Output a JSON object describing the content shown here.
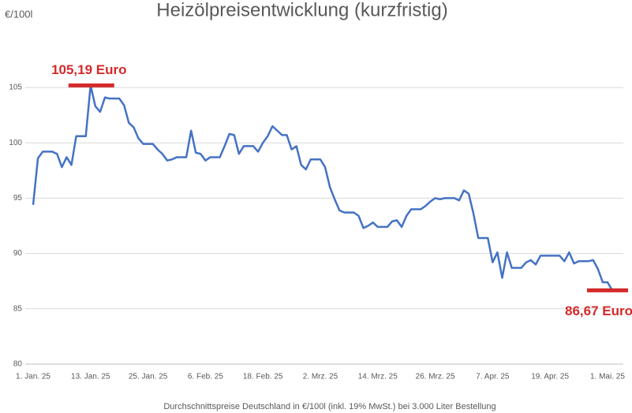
{
  "chart_data": {
    "type": "line",
    "title": "Heizölpreisentwicklung (kurzfristig)",
    "y_label": "€/100l",
    "caption": "Durchschnittspreise Deutschland in €/100l (inkl. 19% MwSt.) bei 3.000 Liter Bestellung",
    "categories": [
      "1. Jan. 25",
      null,
      null,
      null,
      null,
      null,
      null,
      null,
      null,
      null,
      null,
      null,
      "13. Jan. 25",
      null,
      null,
      null,
      null,
      null,
      null,
      null,
      null,
      null,
      null,
      null,
      "25. Jan. 25",
      null,
      null,
      null,
      null,
      null,
      null,
      null,
      null,
      null,
      null,
      null,
      "6. Feb. 25",
      null,
      null,
      null,
      null,
      null,
      null,
      null,
      null,
      null,
      null,
      null,
      "18. Feb. 25",
      null,
      null,
      null,
      null,
      null,
      null,
      null,
      null,
      null,
      null,
      null,
      "2. Mrz. 25",
      null,
      null,
      null,
      null,
      null,
      null,
      null,
      null,
      null,
      null,
      null,
      "14. Mrz. 25",
      null,
      null,
      null,
      null,
      null,
      null,
      null,
      null,
      null,
      null,
      null,
      "26. Mrz. 25",
      null,
      null,
      null,
      null,
      null,
      null,
      null,
      null,
      null,
      null,
      null,
      "7. Apr. 25",
      null,
      null,
      null,
      null,
      null,
      null,
      null,
      null,
      null,
      null,
      null,
      "19. Apr. 25",
      null,
      null,
      null,
      null,
      null,
      null,
      null,
      null,
      null,
      null,
      null,
      "1. Mai. 25",
      null
    ],
    "values": [
      94.4,
      98.6,
      99.2,
      99.2,
      99.2,
      99.0,
      97.8,
      98.7,
      98.0,
      100.6,
      100.6,
      100.6,
      105.19,
      103.3,
      102.8,
      104.1,
      104.0,
      104.0,
      104.0,
      103.4,
      101.8,
      101.4,
      100.4,
      99.9,
      99.9,
      99.9,
      99.4,
      99.0,
      98.4,
      98.5,
      98.7,
      98.7,
      98.7,
      101.1,
      99.1,
      99.0,
      98.4,
      98.7,
      98.7,
      98.7,
      99.7,
      100.8,
      100.7,
      99.0,
      99.7,
      99.7,
      99.7,
      99.2,
      100.0,
      100.6,
      101.5,
      101.1,
      100.7,
      100.7,
      99.4,
      99.7,
      98.0,
      97.6,
      98.5,
      98.5,
      98.5,
      97.8,
      96.0,
      94.9,
      93.9,
      93.7,
      93.7,
      93.7,
      93.4,
      92.3,
      92.5,
      92.8,
      92.4,
      92.4,
      92.4,
      92.9,
      93.0,
      92.4,
      93.4,
      94.0,
      94.0,
      94.0,
      94.3,
      94.7,
      95.0,
      94.9,
      95.0,
      95.0,
      95.0,
      94.8,
      95.7,
      95.4,
      93.6,
      91.4,
      91.4,
      91.4,
      89.2,
      90.1,
      87.8,
      90.1,
      88.7,
      88.7,
      88.7,
      89.2,
      89.4,
      89.0,
      89.8,
      89.8,
      89.8,
      89.8,
      89.8,
      89.3,
      90.1,
      89.1,
      89.3,
      89.3,
      89.3,
      89.4,
      88.6,
      87.4,
      87.4,
      86.67
    ],
    "color": "#4472c4",
    "ylim": [
      80,
      105
    ],
    "yticks": [
      80,
      85,
      90,
      95,
      100,
      105
    ],
    "grid": true,
    "annotations": [
      {
        "text": "105,19 Euro",
        "value": 105.19,
        "color": "#d42a2a"
      },
      {
        "text": "86,67 Euro",
        "value": 86.67,
        "color": "#d42a2a"
      }
    ]
  }
}
